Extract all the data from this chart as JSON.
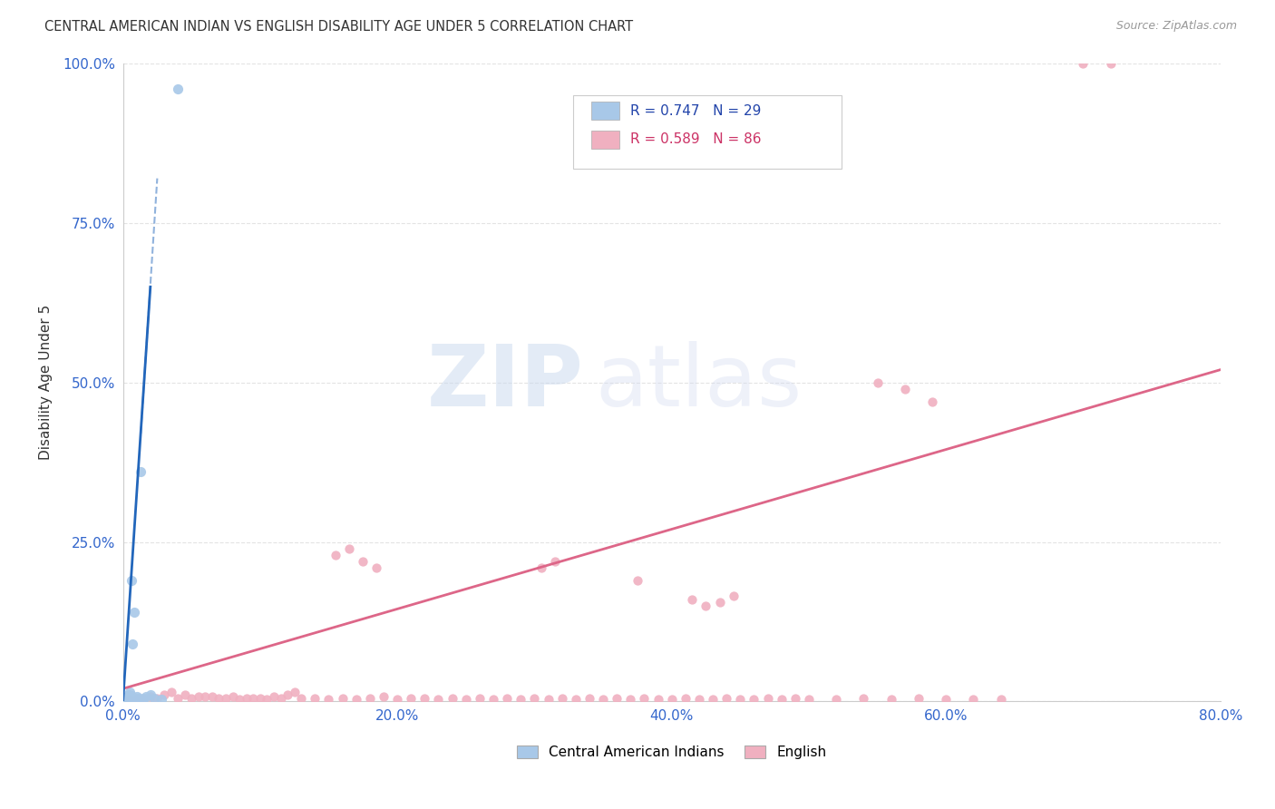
{
  "title": "CENTRAL AMERICAN INDIAN VS ENGLISH DISABILITY AGE UNDER 5 CORRELATION CHART",
  "source": "Source: ZipAtlas.com",
  "ylabel": "Disability Age Under 5",
  "x_ticks": [
    0.0,
    20.0,
    40.0,
    60.0,
    80.0
  ],
  "x_tick_labels": [
    "0.0%",
    "20.0%",
    "40.0%",
    "60.0%",
    "80.0%"
  ],
  "y_ticks": [
    0.0,
    25.0,
    50.0,
    75.0,
    100.0
  ],
  "y_tick_labels": [
    "0.0%",
    "25.0%",
    "50.0%",
    "75.0%",
    "100.0%"
  ],
  "xlim": [
    0.0,
    80.0
  ],
  "ylim": [
    0.0,
    100.0
  ],
  "blue_color": "#a8c8e8",
  "blue_line_color": "#2266bb",
  "pink_color": "#f0b0c0",
  "pink_line_color": "#dd6688",
  "legend_blue_label": "R = 0.747   N = 29",
  "legend_pink_label": "R = 0.589   N = 86",
  "legend1_label": "Central American Indians",
  "legend2_label": "English",
  "watermark_zip": "ZIP",
  "watermark_atlas": "atlas",
  "blue_scatter_x": [
    0.1,
    0.2,
    0.3,
    0.4,
    0.5,
    0.6,
    0.7,
    0.8,
    0.9,
    1.0,
    1.1,
    1.3,
    1.5,
    1.7,
    2.0,
    2.3,
    2.8,
    0.15,
    0.25,
    0.35,
    0.45,
    0.55,
    0.65,
    0.75,
    0.85,
    0.95,
    1.05,
    1.15,
    4.0
  ],
  "blue_scatter_y": [
    0.3,
    0.5,
    0.8,
    1.0,
    1.5,
    19.0,
    9.0,
    14.0,
    0.5,
    0.8,
    0.3,
    36.0,
    0.5,
    0.8,
    1.0,
    0.5,
    0.3,
    0.2,
    0.4,
    0.6,
    0.7,
    0.8,
    0.9,
    0.5,
    0.3,
    0.4,
    0.3,
    0.5,
    96.0
  ],
  "pink_scatter_x": [
    0.5,
    1.0,
    2.0,
    3.0,
    4.0,
    5.0,
    6.0,
    7.0,
    8.0,
    9.0,
    10.0,
    11.0,
    12.0,
    13.0,
    14.0,
    15.0,
    16.0,
    17.0,
    18.0,
    19.0,
    20.0,
    21.0,
    22.0,
    23.0,
    24.0,
    25.0,
    26.0,
    27.0,
    28.0,
    29.0,
    30.0,
    31.0,
    32.0,
    33.0,
    34.0,
    35.0,
    36.0,
    37.0,
    38.0,
    39.0,
    40.0,
    41.0,
    42.0,
    43.0,
    44.0,
    45.0,
    46.0,
    47.0,
    48.0,
    49.0,
    50.0,
    52.0,
    54.0,
    56.0,
    58.0,
    60.0,
    62.0,
    64.0,
    1.5,
    2.5,
    3.5,
    4.5,
    5.5,
    6.5,
    7.5,
    8.5,
    9.5,
    10.5,
    11.5,
    12.5,
    30.5,
    31.5,
    37.5,
    41.5,
    42.5,
    43.5,
    44.5,
    55.0,
    57.0,
    59.0,
    70.0,
    72.0,
    15.5,
    16.5,
    17.5,
    18.5
  ],
  "pink_scatter_y": [
    0.3,
    0.5,
    0.8,
    1.0,
    0.5,
    0.5,
    0.8,
    0.5,
    0.8,
    0.5,
    0.5,
    0.8,
    1.0,
    0.5,
    0.5,
    0.3,
    0.5,
    0.3,
    0.5,
    0.8,
    0.3,
    0.5,
    0.5,
    0.3,
    0.5,
    0.3,
    0.5,
    0.3,
    0.5,
    0.3,
    0.5,
    0.3,
    0.5,
    0.3,
    0.5,
    0.3,
    0.5,
    0.3,
    0.5,
    0.3,
    0.3,
    0.5,
    0.3,
    0.3,
    0.5,
    0.3,
    0.3,
    0.5,
    0.3,
    0.5,
    0.3,
    0.3,
    0.5,
    0.3,
    0.5,
    0.3,
    0.3,
    0.3,
    0.5,
    0.5,
    1.5,
    1.0,
    0.8,
    0.8,
    0.5,
    0.3,
    0.5,
    0.3,
    0.5,
    1.5,
    21.0,
    22.0,
    19.0,
    16.0,
    15.0,
    15.5,
    16.5,
    50.0,
    49.0,
    47.0,
    100.0,
    100.0,
    23.0,
    24.0,
    22.0,
    21.0
  ],
  "blue_reg_x0": 0.0,
  "blue_reg_y0": 0.0,
  "blue_reg_x1": 2.0,
  "blue_reg_y1": 65.0,
  "blue_dashed_x0": 1.3,
  "blue_dashed_y0": 42.0,
  "blue_dashed_x1": 2.5,
  "blue_dashed_y1": 82.0,
  "pink_reg_x0": 0.0,
  "pink_reg_y0": 2.0,
  "pink_reg_x1": 80.0,
  "pink_reg_y1": 52.0,
  "background_color": "#ffffff",
  "grid_color": "#dddddd"
}
